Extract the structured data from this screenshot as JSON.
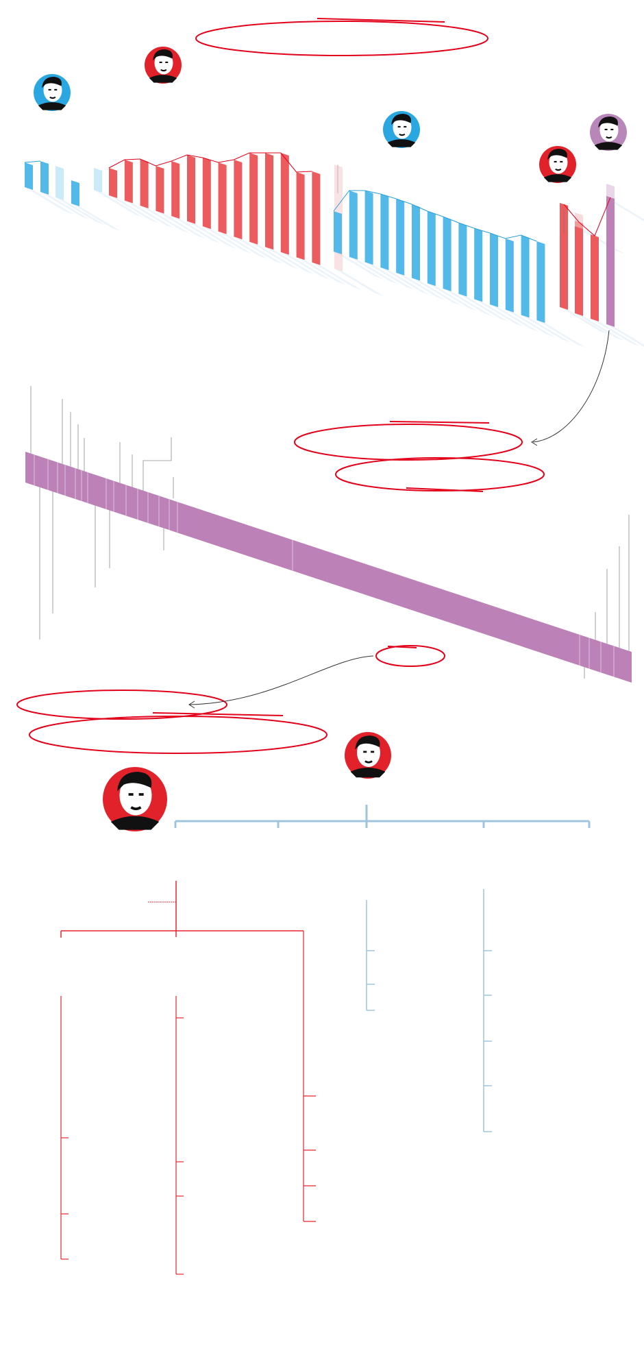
{
  "colors": {
    "red_bar": "#ec5b5e",
    "blue_bar": "#52b9e8",
    "purple_bar": "#bc82b8",
    "annotation_red": "#e2001a",
    "tree_blue": "#9fc4dd",
    "tree_red": "#e8242f",
    "leader_gray": "#8a8a8a",
    "floor_blue": "#e4eef7"
  },
  "portraits": [
    {
      "icon": "portrait-blue-party-icon",
      "ring": "#2aa7e0"
    },
    {
      "icon": "portrait-red-party-icon",
      "ring": "#e2222a"
    },
    {
      "icon": "portrait-blue-party-icon",
      "ring": "#2aa7e0"
    },
    {
      "icon": "portrait-red-party-icon",
      "ring": "#e2222a"
    },
    {
      "icon": "portrait-purple-party-icon",
      "ring": "#b986b9"
    },
    {
      "icon": "portrait-red-party-icon",
      "ring": "#e2222a"
    },
    {
      "icon": "portrait-red-party-icon",
      "ring": "#e2222a"
    }
  ],
  "icons": {
    "arrow": "curved-arrow-icon",
    "annotation": "hand-drawn-ellipse-icon"
  }
}
